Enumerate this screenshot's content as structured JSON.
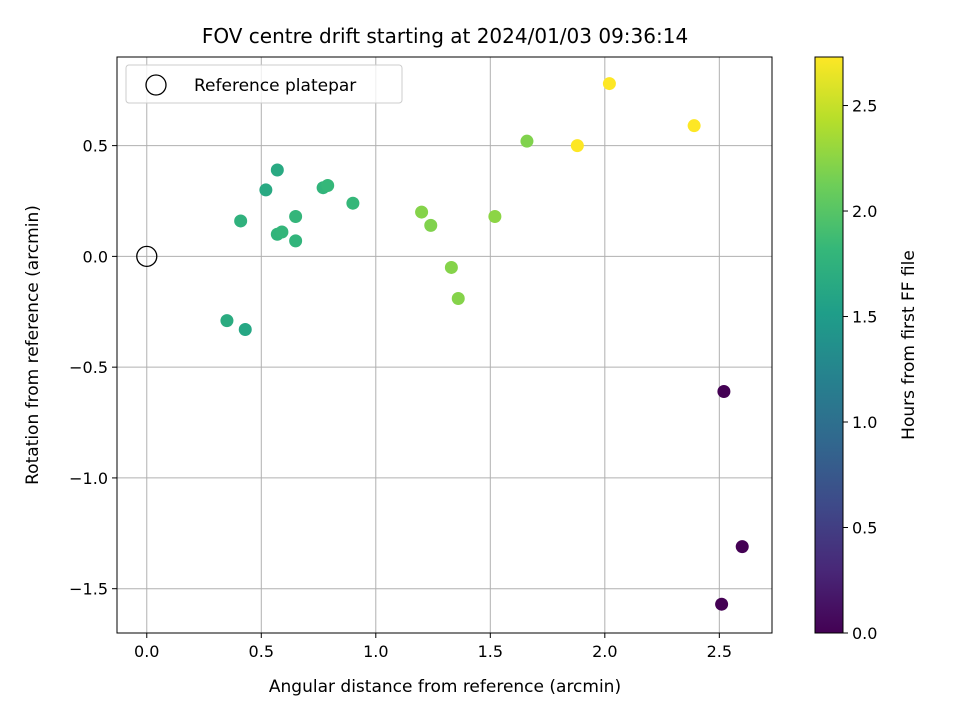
{
  "chart_data": {
    "type": "scatter",
    "title": "FOV centre drift starting at 2024/01/03 09:36:14",
    "xlabel": "Angular distance from reference (arcmin)",
    "ylabel": "Rotation from reference (arcmin)",
    "xlim": [
      -0.13,
      2.73
    ],
    "ylim": [
      -1.7,
      0.9
    ],
    "xticks": [
      0.0,
      0.5,
      1.0,
      1.5,
      2.0,
      2.5
    ],
    "xtick_labels": [
      "0.0",
      "0.5",
      "1.0",
      "1.5",
      "2.0",
      "2.5"
    ],
    "yticks": [
      0.5,
      0.0,
      -0.5,
      -1.0,
      -1.5
    ],
    "ytick_labels": [
      "0.5",
      "0.0",
      "−0.5",
      "−1.0",
      "−1.5"
    ],
    "grid": true,
    "legend": {
      "placement": "top-left",
      "entries": [
        {
          "label": "Reference platepar",
          "marker": "open-circle"
        }
      ]
    },
    "reference_point": {
      "x": 0.0,
      "y": 0.0
    },
    "colormap": "viridis",
    "colorbar": {
      "label": "Hours from first FF file",
      "range": [
        0.0,
        2.73
      ],
      "ticks": [
        0.0,
        0.5,
        1.0,
        1.5,
        2.0,
        2.5
      ],
      "tick_labels": [
        "0.0",
        "0.5",
        "1.0",
        "1.5",
        "2.0",
        "2.5"
      ]
    },
    "points": [
      {
        "x": 2.52,
        "y": -0.61,
        "hours": 0.0
      },
      {
        "x": 2.6,
        "y": -1.31,
        "hours": 0.0
      },
      {
        "x": 2.51,
        "y": -1.57,
        "hours": 0.0
      },
      {
        "x": 0.35,
        "y": -0.29,
        "hours": 1.68
      },
      {
        "x": 0.43,
        "y": -0.33,
        "hours": 1.62
      },
      {
        "x": 0.52,
        "y": 0.3,
        "hours": 1.65
      },
      {
        "x": 0.57,
        "y": 0.39,
        "hours": 1.65
      },
      {
        "x": 0.41,
        "y": 0.16,
        "hours": 1.75
      },
      {
        "x": 0.57,
        "y": 0.1,
        "hours": 1.78
      },
      {
        "x": 0.59,
        "y": 0.11,
        "hours": 1.8
      },
      {
        "x": 0.65,
        "y": 0.18,
        "hours": 1.8
      },
      {
        "x": 0.65,
        "y": 0.07,
        "hours": 1.78
      },
      {
        "x": 0.77,
        "y": 0.31,
        "hours": 1.78
      },
      {
        "x": 0.79,
        "y": 0.32,
        "hours": 1.82
      },
      {
        "x": 0.9,
        "y": 0.24,
        "hours": 1.82
      },
      {
        "x": 1.2,
        "y": 0.2,
        "hours": 2.22
      },
      {
        "x": 1.24,
        "y": 0.14,
        "hours": 2.2
      },
      {
        "x": 1.33,
        "y": -0.05,
        "hours": 2.22
      },
      {
        "x": 1.36,
        "y": -0.19,
        "hours": 2.22
      },
      {
        "x": 1.52,
        "y": 0.18,
        "hours": 2.25
      },
      {
        "x": 1.66,
        "y": 0.52,
        "hours": 2.2
      },
      {
        "x": 1.88,
        "y": 0.5,
        "hours": 2.73
      },
      {
        "x": 2.02,
        "y": 0.78,
        "hours": 2.73
      },
      {
        "x": 2.39,
        "y": 0.59,
        "hours": 2.73
      }
    ]
  }
}
